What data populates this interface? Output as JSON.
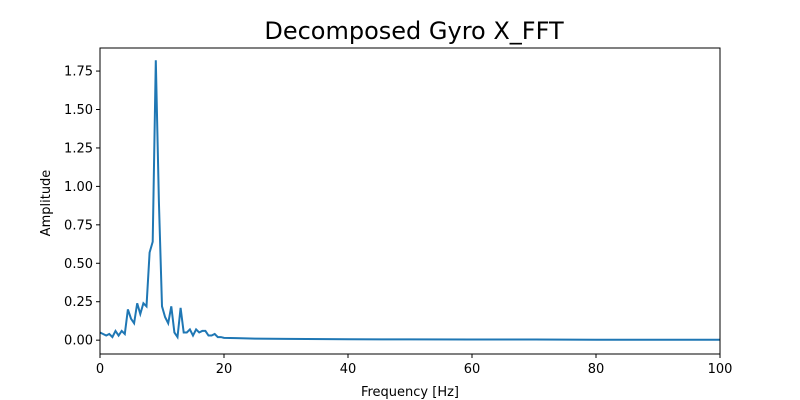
{
  "chart_data": {
    "type": "line",
    "title": "Decomposed Gyro X_FFT",
    "xlabel": "Frequency [Hz]",
    "ylabel": "Amplitude",
    "xlim": [
      0,
      100
    ],
    "ylim": [
      -0.09,
      1.9
    ],
    "grid": false,
    "line_color": "#1f77b4",
    "x_ticks": [
      0,
      20,
      40,
      60,
      80,
      100
    ],
    "x_tick_labels": [
      "0",
      "20",
      "40",
      "60",
      "80",
      "100"
    ],
    "y_ticks": [
      0.0,
      0.25,
      0.5,
      0.75,
      1.0,
      1.25,
      1.5,
      1.75
    ],
    "y_tick_labels": [
      "0.00",
      "0.25",
      "0.50",
      "0.75",
      "1.00",
      "1.25",
      "1.50",
      "1.75"
    ],
    "series": [
      {
        "x": [
          0,
          0.5,
          1,
          1.5,
          2,
          2.5,
          3,
          3.5,
          4,
          4.5,
          5,
          5.5,
          6,
          6.5,
          7,
          7.5,
          8,
          8.5,
          9,
          9.5,
          10,
          10.5,
          11,
          11.5,
          12,
          12.5,
          13,
          13.5,
          14,
          14.5,
          15,
          15.5,
          16,
          16.5,
          17,
          17.5,
          18,
          18.5,
          19,
          19.5,
          20,
          22,
          25,
          30,
          40,
          50,
          60,
          70,
          80,
          90,
          100
        ],
        "y": [
          0.05,
          0.04,
          0.03,
          0.04,
          0.02,
          0.06,
          0.03,
          0.06,
          0.04,
          0.2,
          0.14,
          0.11,
          0.24,
          0.17,
          0.24,
          0.22,
          0.57,
          0.64,
          1.82,
          0.9,
          0.22,
          0.15,
          0.11,
          0.22,
          0.05,
          0.02,
          0.21,
          0.05,
          0.05,
          0.07,
          0.03,
          0.07,
          0.05,
          0.06,
          0.06,
          0.03,
          0.03,
          0.04,
          0.02,
          0.02,
          0.015,
          0.013,
          0.01,
          0.008,
          0.006,
          0.005,
          0.004,
          0.004,
          0.003,
          0.003,
          0.003
        ]
      }
    ]
  }
}
